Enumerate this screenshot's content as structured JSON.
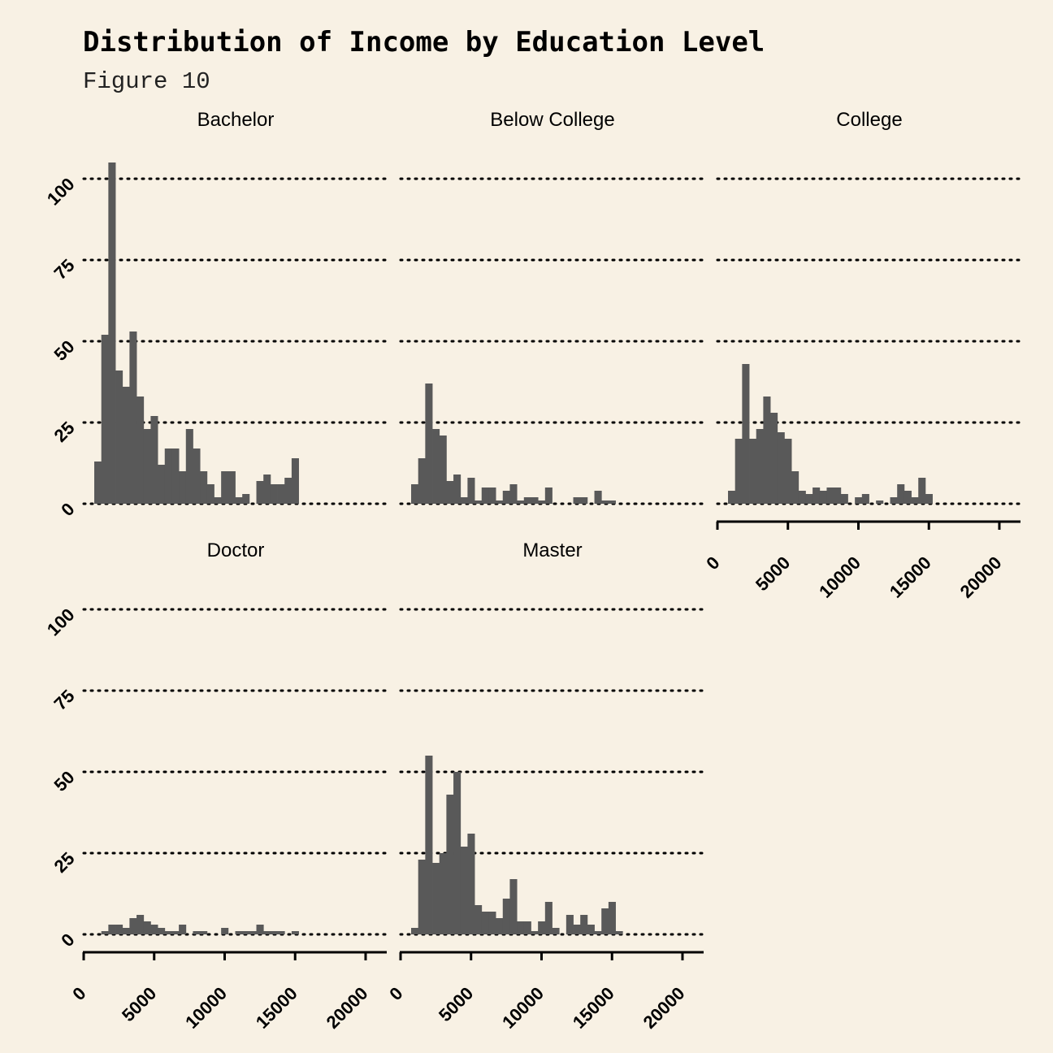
{
  "title": "Distribution of Income by Education Level",
  "subtitle": "Figure 10",
  "chart_data": {
    "type": "bar",
    "chart_kind": "histogram",
    "facet_layout": "3 columns, 2 rows, shared axes",
    "bin_width": 500,
    "first_bin_center": 1000,
    "xlim": [
      0,
      21500
    ],
    "ylim": [
      0,
      105
    ],
    "x_ticks": [
      0,
      5000,
      10000,
      15000,
      20000
    ],
    "y_ticks": [
      0,
      25,
      50,
      75,
      100
    ],
    "tick_labels": {
      "x": [
        "0",
        "5000",
        "10000",
        "15000",
        "20000"
      ],
      "y": [
        "0",
        "25",
        "50",
        "75",
        "100"
      ]
    },
    "xlabel": "",
    "ylabel": "",
    "grid": "horizontal dotted",
    "bar_color": "#595959",
    "background_color": "#f8f1e4",
    "panels": [
      {
        "name": "Bachelor",
        "counts": [
          13,
          52,
          105,
          41,
          36,
          53,
          33,
          23,
          27,
          12,
          17,
          17,
          10,
          23,
          17,
          10,
          6,
          2,
          10,
          10,
          2,
          3,
          0,
          7,
          9,
          6,
          6,
          8,
          14,
          0
        ]
      },
      {
        "name": "Below College",
        "counts": [
          6,
          14,
          37,
          23,
          21,
          7,
          9,
          2,
          8,
          1,
          5,
          5,
          1,
          4,
          6,
          1,
          2,
          2,
          1,
          5,
          0,
          0,
          0,
          2,
          2,
          0,
          4,
          1,
          1,
          0
        ]
      },
      {
        "name": "College",
        "counts": [
          4,
          20,
          43,
          20,
          23,
          33,
          28,
          22,
          20,
          10,
          4,
          3,
          5,
          4,
          5,
          5,
          3,
          0,
          2,
          3,
          0,
          1,
          0,
          2,
          6,
          4,
          2,
          8,
          3,
          0
        ]
      },
      {
        "name": "Doctor",
        "counts": [
          0,
          1,
          3,
          3,
          2,
          5,
          6,
          4,
          3,
          2,
          1,
          1,
          3,
          0,
          1,
          1,
          0,
          0,
          2,
          0,
          1,
          1,
          1,
          3,
          1,
          1,
          1,
          0,
          1,
          0
        ]
      },
      {
        "name": "Master",
        "counts": [
          2,
          23,
          55,
          22,
          25,
          43,
          50,
          27,
          31,
          9,
          7,
          7,
          5,
          11,
          17,
          4,
          4,
          1,
          4,
          10,
          2,
          0,
          6,
          3,
          6,
          3,
          1,
          8,
          10,
          1
        ]
      }
    ]
  }
}
